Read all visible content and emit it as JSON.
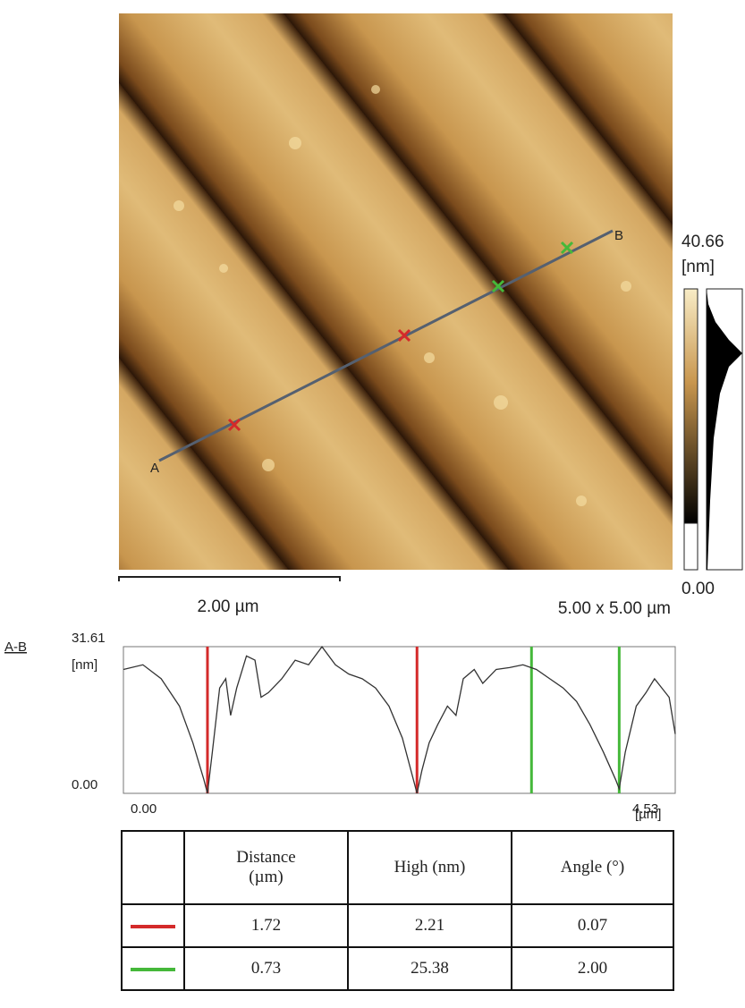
{
  "afm_image": {
    "point_a": "A",
    "point_b": "B",
    "scale_bar": "2.00 µm",
    "scan_size": "5.00 x 5.00 µm",
    "colorbar_max": "40.66",
    "colorbar_unit": "[nm]",
    "colorbar_min": "0.00"
  },
  "profile": {
    "label": "A-B",
    "y_unit": "[nm]",
    "x_unit": "[µm]",
    "xlim": [
      0,
      4.53
    ],
    "ylim": [
      0,
      31.61
    ],
    "xticks": [
      {
        "value": 0,
        "label": "0.00"
      },
      4.53
    ],
    "yticks": [
      {
        "value": 0,
        "label": "0.00"
      },
      31.61
    ],
    "color": "#333333",
    "x": [
      0,
      0.16,
      0.31,
      0.46,
      0.57,
      0.66,
      0.69,
      0.73,
      0.79,
      0.84,
      0.88,
      0.93,
      1.01,
      1.08,
      1.13,
      1.19,
      1.3,
      1.41,
      1.52,
      1.63,
      1.74,
      1.85,
      1.96,
      2.07,
      2.18,
      2.29,
      2.38,
      2.41,
      2.45,
      2.51,
      2.58,
      2.66,
      2.73,
      2.79,
      2.88,
      2.95,
      3.06,
      3.17,
      3.28,
      3.39,
      3.5,
      3.61,
      3.72,
      3.83,
      3.94,
      4.04,
      4.07,
      4.12,
      4.21,
      4.29,
      4.36,
      4.42,
      4.48,
      4.53
    ],
    "heights": [
      26.7,
      27.7,
      24.7,
      18.8,
      10.9,
      3.0,
      0,
      8.9,
      22.7,
      24.7,
      16.8,
      22.7,
      29.6,
      28.7,
      20.7,
      21.7,
      24.7,
      28.7,
      27.7,
      31.6,
      27.7,
      25.7,
      24.7,
      22.7,
      18.8,
      11.9,
      3.0,
      0,
      4.9,
      10.9,
      14.8,
      18.8,
      16.8,
      24.7,
      26.7,
      23.7,
      26.7,
      27.1,
      27.7,
      26.7,
      24.7,
      22.7,
      19.8,
      14.8,
      8.9,
      3.0,
      1.0,
      8.9,
      18.8,
      21.7,
      24.7,
      22.7,
      20.7,
      12.8
    ],
    "cursors": [
      {
        "color": "#d42a2a",
        "x": [
          0.69,
          2.41
        ]
      },
      {
        "color": "#45b83a",
        "x": [
          3.35,
          4.07
        ]
      }
    ]
  },
  "table": {
    "headers": [
      "Distance (µm)",
      "High (nm)",
      "Angle (°)"
    ],
    "rows": [
      [
        "1.72",
        "2.21",
        "0.07"
      ],
      [
        "0.73",
        "25.38",
        "2.00"
      ]
    ]
  }
}
